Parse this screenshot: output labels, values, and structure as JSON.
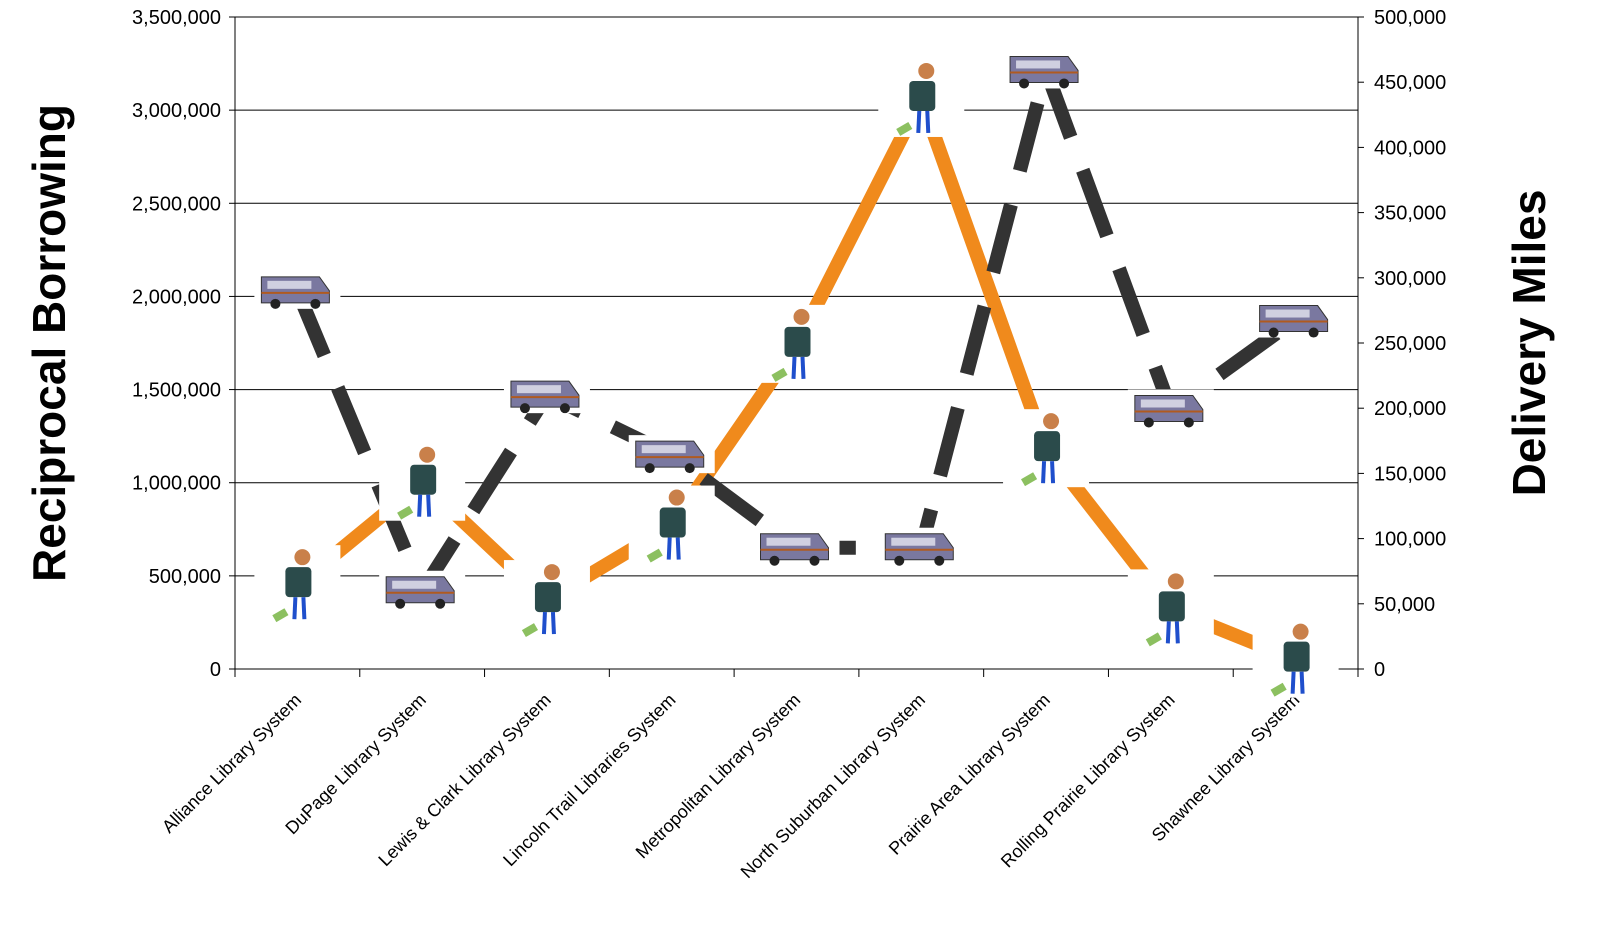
{
  "chart_data": {
    "type": "line",
    "y_label": "Reciprocal Borrowing",
    "y2_label": "Delivery Miles",
    "categories": [
      "Alliance Library System",
      "DuPage Library System",
      "Lewis & Clark Library System",
      "Lincoln Trail Libraries System",
      "Metropolitan Library System",
      "North Suburban Library System",
      "Prairie Area Library System",
      "Rolling Prairie Library System",
      "Shawnee Library System"
    ],
    "series": [
      {
        "name": "Reciprocal Borrowing",
        "color": "#f08a1c",
        "values": [
          450000,
          1000000,
          370000,
          770000,
          1740000,
          3060000,
          1180000,
          320000,
          50000
        ]
      },
      {
        "name": "Delivery Miles",
        "color": "#333333",
        "axis": "y2",
        "dashed": true,
        "values": [
          290000,
          60000,
          210000,
          164000,
          93000,
          93000,
          459000,
          199000,
          268000
        ]
      }
    ],
    "ylim": [
      0,
      3500000
    ],
    "yticks": [
      0,
      {
        "value": 500000,
        "label": "500,000"
      },
      {
        "value": 1000000,
        "label": "1,000,000"
      },
      {
        "value": 1500000,
        "label": "1,500,000"
      },
      {
        "value": 2000000,
        "label": "2,000,000"
      },
      {
        "value": 2500000,
        "label": "2,500,000"
      },
      {
        "value": 3000000,
        "label": "3,000,000"
      },
      {
        "value": 3500000,
        "label": "3,500,000"
      }
    ],
    "y2lim": [
      0,
      500000
    ],
    "y2ticks": [
      0,
      {
        "value": 50000,
        "label": "50,000"
      },
      {
        "value": 100000,
        "label": "100,000"
      },
      {
        "value": 150000,
        "label": "150,000"
      },
      {
        "value": 200000,
        "label": "200,000"
      },
      {
        "value": 250000,
        "label": "250,000"
      },
      {
        "value": 300000,
        "label": "300,000"
      },
      {
        "value": 350000,
        "label": "350,000"
      },
      {
        "value": 400000,
        "label": "400,000"
      },
      {
        "value": 450000,
        "label": "450,000"
      },
      {
        "value": 500000,
        "label": "500,000"
      }
    ],
    "grid": true
  }
}
